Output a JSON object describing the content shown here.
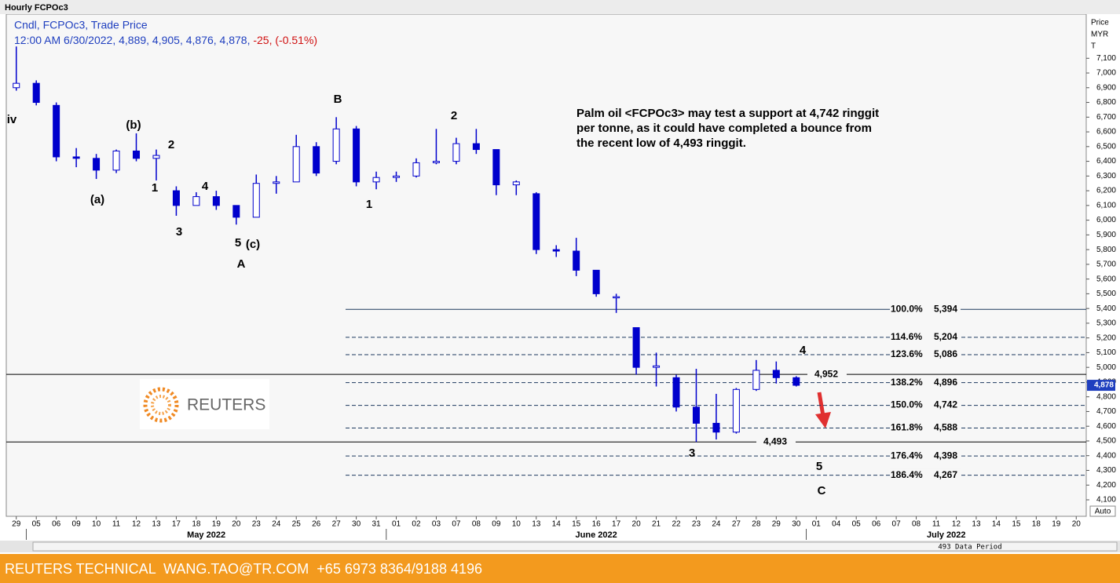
{
  "chart_data": {
    "type": "candlestick",
    "title": "Hourly FCPOc3",
    "legend_line": "Cndl, FCPOc3, Trade Price",
    "quote_line": "12:00 AM 6/30/2022, 4,889, 4,905, 4,876, 4,878,",
    "change_line": "-25, (-0.51%)",
    "axis_title": [
      "Price",
      "MYR",
      "T"
    ],
    "categories": [
      "29",
      "05",
      "06",
      "09",
      "10",
      "11",
      "12",
      "13",
      "17",
      "18",
      "19",
      "20",
      "23",
      "24",
      "25",
      "26",
      "27",
      "30",
      "31",
      "01",
      "02",
      "03",
      "07",
      "08",
      "09",
      "10",
      "13",
      "14",
      "15",
      "16",
      "17",
      "20",
      "21",
      "22",
      "23",
      "24",
      "27",
      "28",
      "29",
      "30",
      "01",
      "04",
      "05",
      "06",
      "07",
      "08",
      "11",
      "12",
      "13",
      "14",
      "15",
      "18",
      "19",
      "20"
    ],
    "months": [
      "May 2022",
      "June 2022",
      "July 2022"
    ],
    "color": "#0000cc",
    "open": [
      6900,
      6930,
      6780,
      6430,
      6420,
      6340,
      6470,
      6420,
      6200,
      6100,
      6160,
      6100,
      6020,
      6250,
      6260,
      6500,
      6400,
      6620,
      6260,
      6290,
      6300,
      6390,
      6400,
      6520,
      6480,
      6240,
      6180,
      5800,
      5790,
      5660,
      5480,
      5270,
      5000,
      4930,
      4730,
      4620,
      4560,
      4850,
      4980,
      4930,
      null,
      null,
      null,
      null,
      null,
      null,
      null,
      null,
      null,
      null,
      null,
      null,
      null,
      null
    ],
    "high": [
      7180,
      6950,
      6800,
      6490,
      6450,
      6480,
      6590,
      6480,
      6230,
      6190,
      6200,
      6100,
      6310,
      6300,
      6580,
      6530,
      6700,
      6640,
      6330,
      6330,
      6420,
      6620,
      6560,
      6620,
      6480,
      6270,
      6190,
      5830,
      5880,
      5660,
      5500,
      5270,
      5100,
      4950,
      4990,
      4820,
      4860,
      5050,
      5040,
      4940,
      null,
      null,
      null,
      null,
      null,
      null,
      null,
      null,
      null,
      null,
      null,
      null,
      null,
      null
    ],
    "low": [
      6880,
      6780,
      6400,
      6360,
      6280,
      6320,
      6400,
      6270,
      6030,
      6100,
      6070,
      5970,
      6020,
      6180,
      6260,
      6300,
      6380,
      6230,
      6210,
      6260,
      6290,
      6380,
      6380,
      6450,
      6170,
      6170,
      5770,
      5750,
      5620,
      5480,
      5370,
      4950,
      4870,
      4700,
      4493,
      4510,
      4550,
      4840,
      4890,
      4870,
      null,
      null,
      null,
      null,
      null,
      null,
      null,
      null,
      null,
      null,
      null,
      null,
      null,
      null
    ],
    "close": [
      6930,
      6800,
      6430,
      6420,
      6340,
      6470,
      6420,
      6440,
      6100,
      6160,
      6100,
      6020,
      6250,
      6260,
      6500,
      6320,
      6620,
      6260,
      6290,
      6300,
      6390,
      6400,
      6520,
      6480,
      6240,
      6260,
      5800,
      5790,
      5660,
      5500,
      5480,
      5000,
      5010,
      4730,
      4620,
      4560,
      4850,
      4980,
      4930,
      4878,
      null,
      null,
      null,
      null,
      null,
      null,
      null,
      null,
      null,
      null,
      null,
      null,
      null,
      null
    ],
    "last_price": {
      "value": 4878,
      "label": "4,878"
    },
    "ylim": [
      3988,
      7400
    ],
    "yticks": [
      {
        "value": 4100,
        "label": "4,100"
      },
      {
        "value": 4200,
        "label": "4,200"
      },
      {
        "value": 4300,
        "label": "4,300"
      },
      {
        "value": 4400,
        "label": "4,400"
      },
      {
        "value": 4500,
        "label": "4,500"
      },
      {
        "value": 4600,
        "label": "4,600"
      },
      {
        "value": 4700,
        "label": "4,700"
      },
      {
        "value": 4800,
        "label": "4,800"
      },
      {
        "value": 4900,
        "label": "4,900"
      },
      {
        "value": 5000,
        "label": "5,000"
      },
      {
        "value": 5100,
        "label": "5,100"
      },
      {
        "value": 5200,
        "label": "5,200"
      },
      {
        "value": 5300,
        "label": "5,300"
      },
      {
        "value": 5400,
        "label": "5,400"
      },
      {
        "value": 5500,
        "label": "5,500"
      },
      {
        "value": 5600,
        "label": "5,600"
      },
      {
        "value": 5700,
        "label": "5,700"
      },
      {
        "value": 5800,
        "label": "5,800"
      },
      {
        "value": 5900,
        "label": "5,900"
      },
      {
        "value": 6000,
        "label": "6,000"
      },
      {
        "value": 6100,
        "label": "6,100"
      },
      {
        "value": 6200,
        "label": "6,200"
      },
      {
        "value": 6300,
        "label": "6,300"
      },
      {
        "value": 6400,
        "label": "6,400"
      },
      {
        "value": 6500,
        "label": "6,500"
      },
      {
        "value": 6600,
        "label": "6,600"
      },
      {
        "value": 6700,
        "label": "6,700"
      },
      {
        "value": 6800,
        "label": "6,800"
      },
      {
        "value": 6900,
        "label": "6,900"
      },
      {
        "value": 7000,
        "label": "7,000"
      },
      {
        "value": 7100,
        "label": "7,100"
      }
    ],
    "fib_levels": [
      {
        "ratio": "100.0%",
        "value": 5394,
        "label": "5,394"
      },
      {
        "ratio": "114.6%",
        "value": 5204,
        "label": "5,204"
      },
      {
        "ratio": "123.6%",
        "value": 5086,
        "label": "5,086"
      },
      {
        "ratio": "138.2%",
        "value": 4896,
        "label": "4,896"
      },
      {
        "ratio": "150.0%",
        "value": 4742,
        "label": "4,742"
      },
      {
        "ratio": "161.8%",
        "value": 4588,
        "label": "4,588"
      },
      {
        "ratio": "176.4%",
        "value": 4398,
        "label": "4,398"
      },
      {
        "ratio": "186.4%",
        "value": 4267,
        "label": "4,267"
      }
    ],
    "levels": [
      {
        "value": 4952,
        "label": "4,952"
      },
      {
        "value": 4493,
        "label": "4,493"
      }
    ],
    "wave_labels": [
      "iv",
      "(b)",
      "2",
      "(a)",
      "1",
      "4",
      "3",
      "5",
      "(c)",
      "A",
      "B",
      "1",
      "2",
      "4",
      "3",
      "5",
      "C"
    ],
    "commentary": [
      "Palm oil <FCPOc3> may test a support at 4,742 ringgit",
      "per tonne, as it could have completed a bounce from",
      "the recent low of 4,493 ringgit."
    ],
    "logo": "REUTERS",
    "scroll_label": "493 Data Period",
    "auto_label": "Auto",
    "footer": "REUTERS TECHNICAL  WANG.TAO@TR.COM  +65 6973 8364/9188 4196"
  }
}
